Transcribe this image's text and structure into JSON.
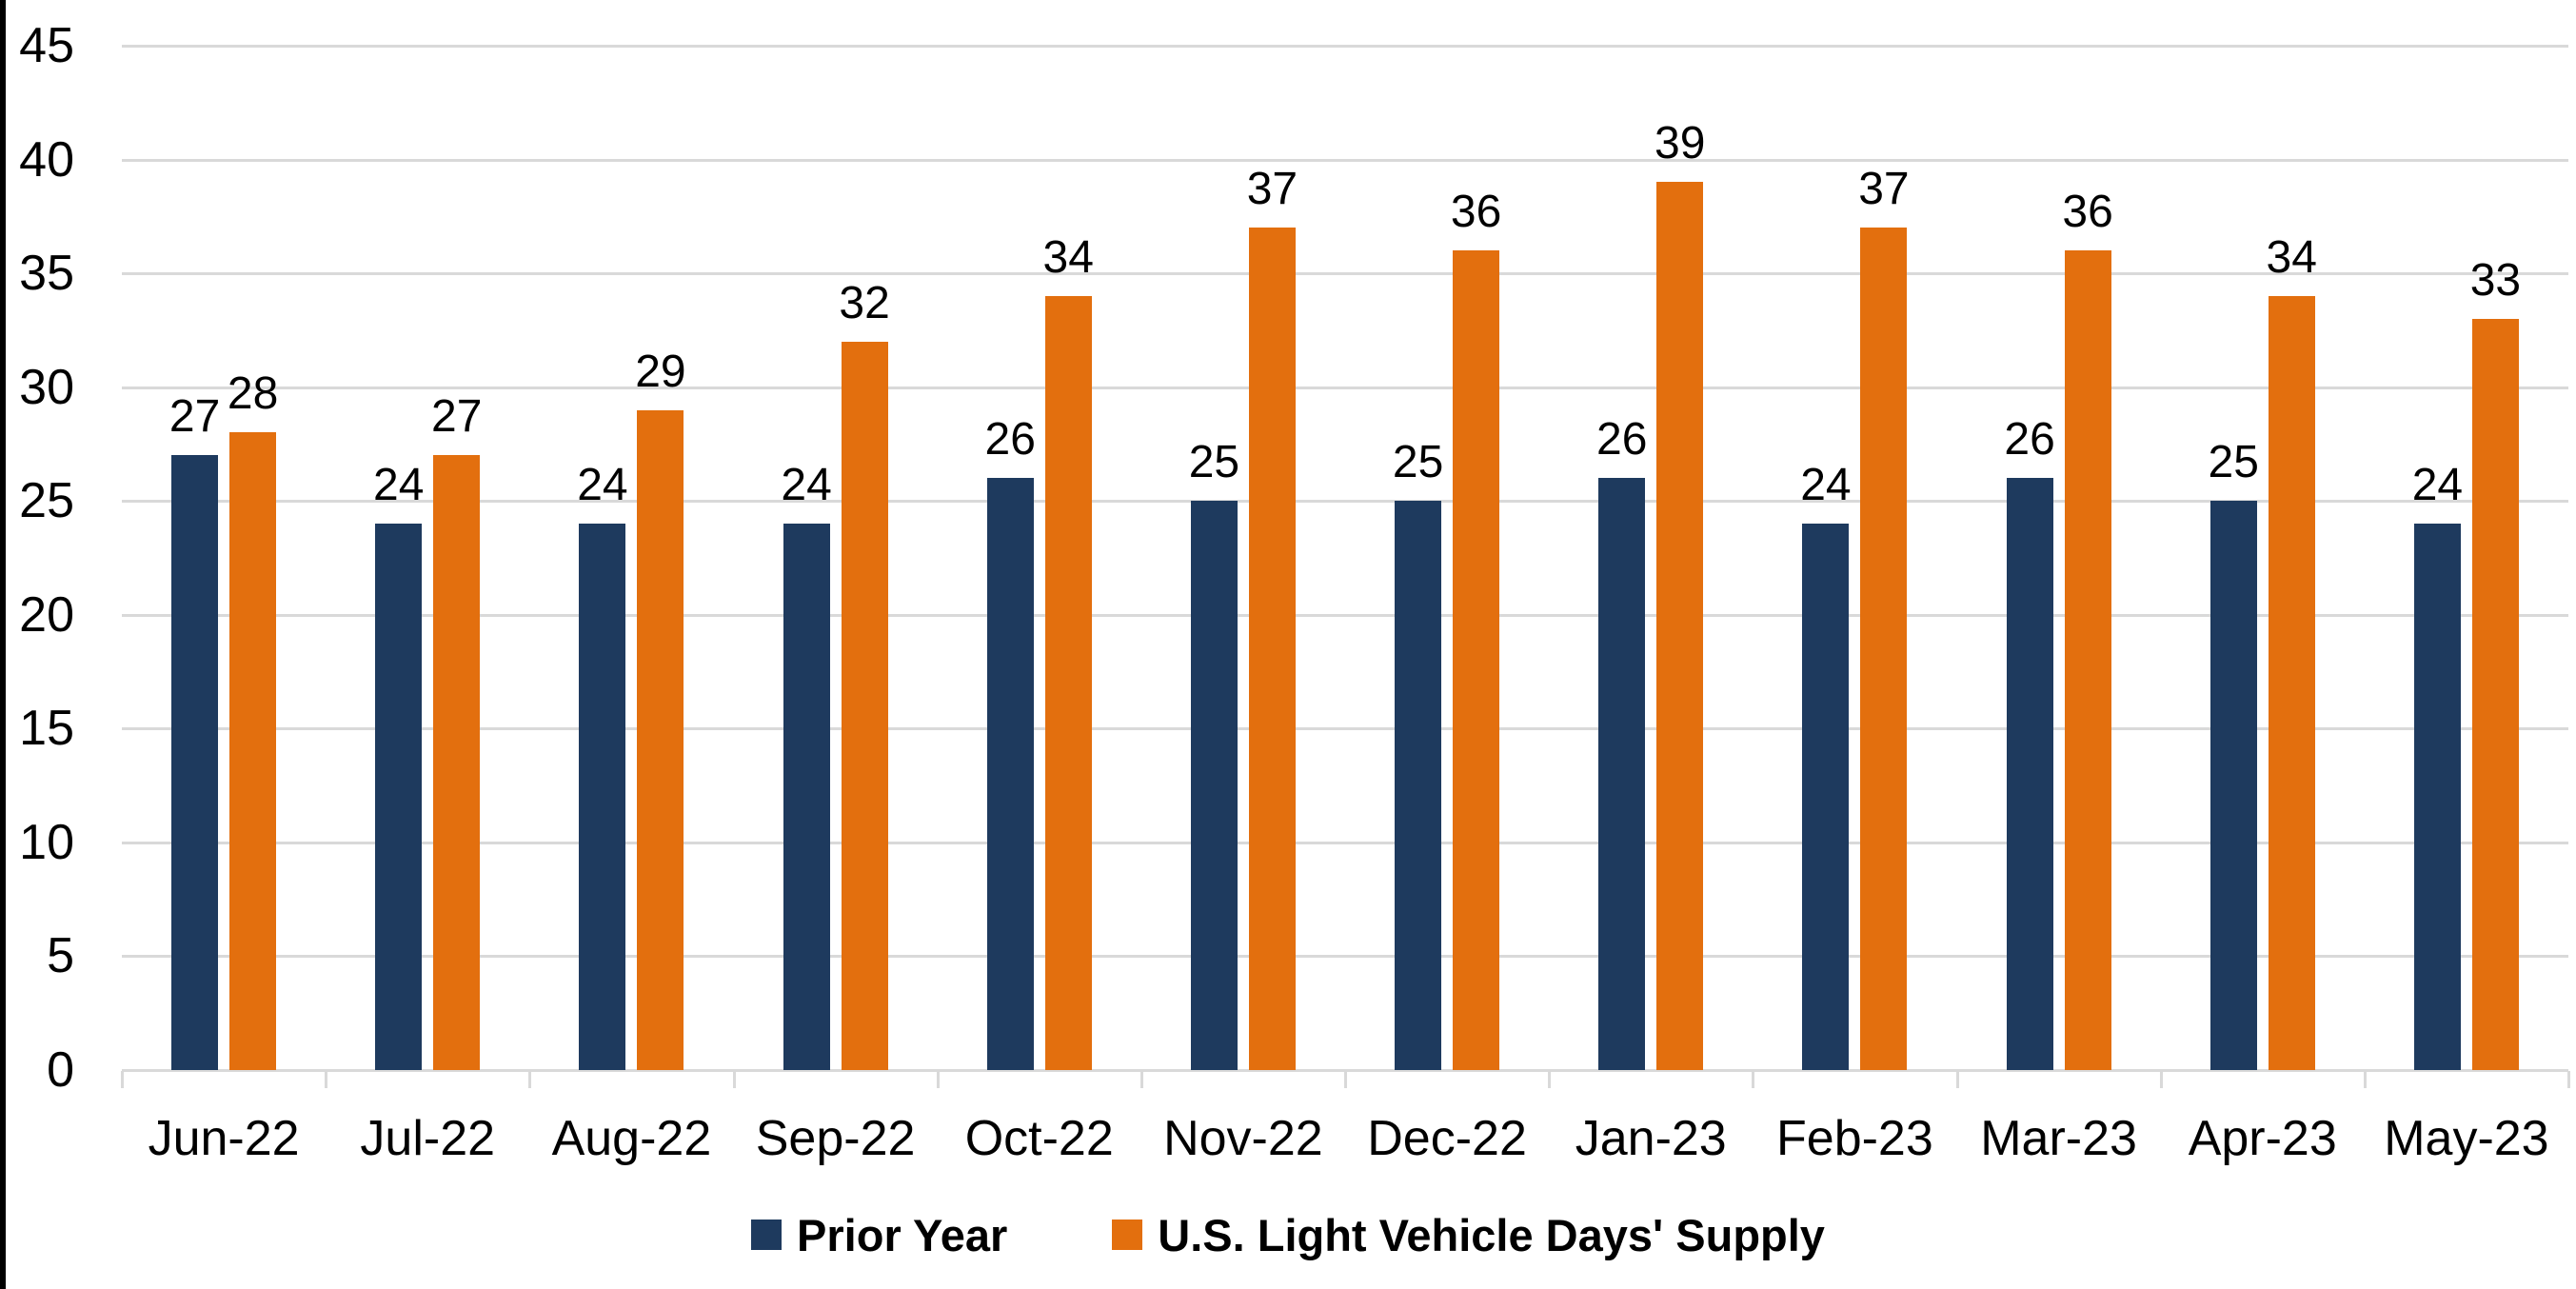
{
  "chart_data": {
    "type": "bar",
    "title": "",
    "categories": [
      "Jun-22",
      "Jul-22",
      "Aug-22",
      "Sep-22",
      "Oct-22",
      "Nov-22",
      "Dec-22",
      "Jan-23",
      "Feb-23",
      "Mar-23",
      "Apr-23",
      "May-23"
    ],
    "series": [
      {
        "name": "Prior Year",
        "color": "#1e3a5e",
        "values": [
          27,
          24,
          24,
          24,
          26,
          25,
          25,
          26,
          24,
          26,
          25,
          24
        ]
      },
      {
        "name": "U.S. Light Vehicle Days' Supply",
        "color": "#e36f0e",
        "values": [
          28,
          27,
          29,
          32,
          34,
          37,
          36,
          39,
          37,
          36,
          34,
          33
        ]
      }
    ],
    "xlabel": "",
    "ylabel": "",
    "ylim": [
      0,
      45
    ],
    "y_ticks": [
      0,
      5,
      10,
      15,
      20,
      25,
      30,
      35,
      40,
      45
    ],
    "grid": "horizontal-only",
    "gridline_color": "#d9d9d9",
    "data_labels": true,
    "legend_position": "bottom"
  }
}
